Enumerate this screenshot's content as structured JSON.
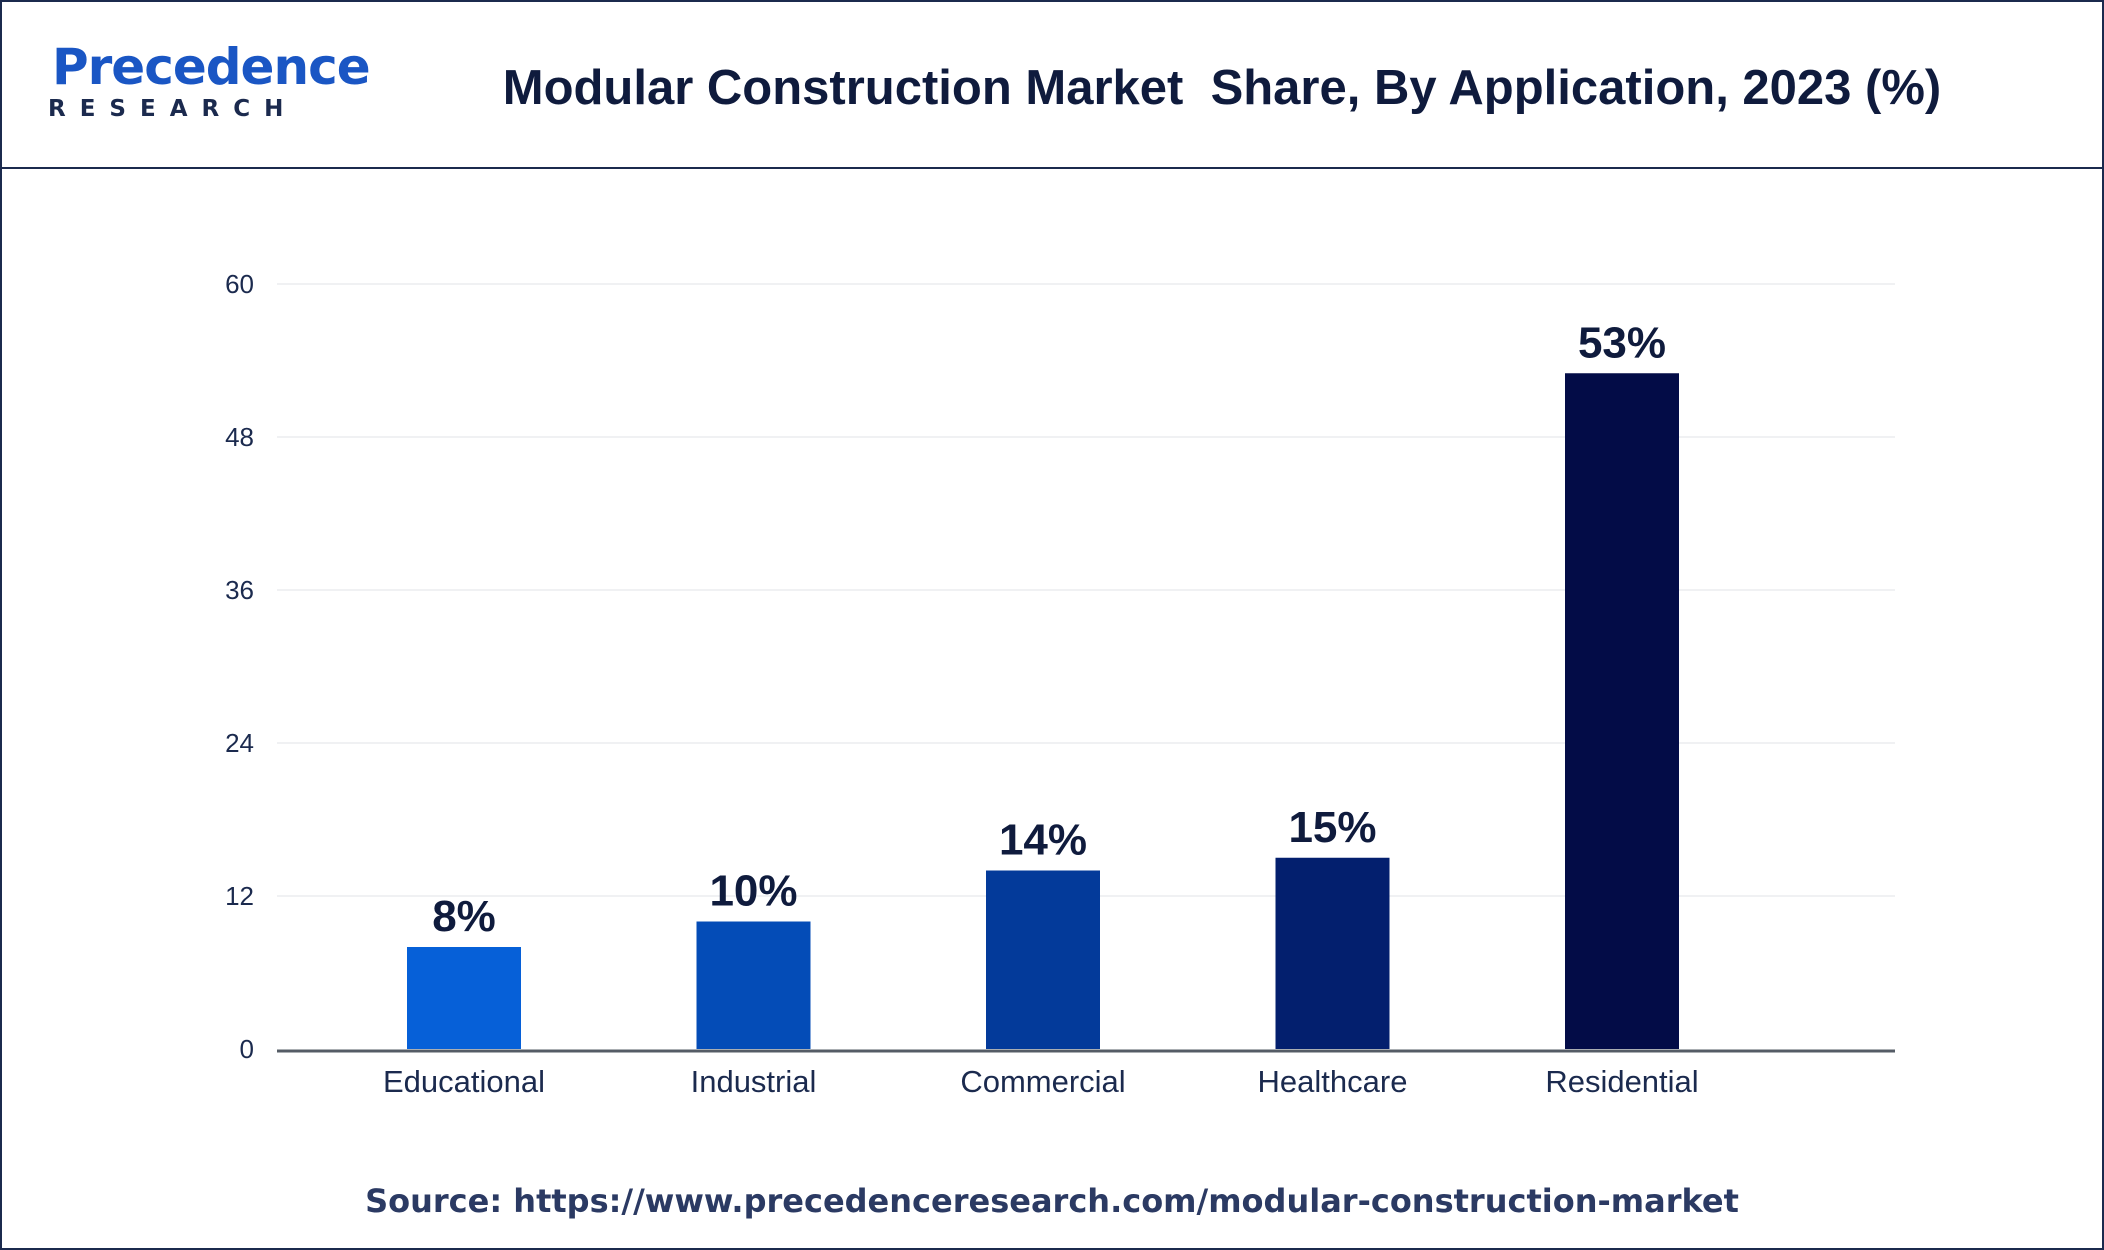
{
  "header": {
    "logo_word": "Precedence",
    "logo_sub": "RESEARCH",
    "title": "Modular Construction Market  Share, By Application, 2023 (%)"
  },
  "footer": {
    "source": "Source: https://www.precedenceresearch.com/modular-construction-market"
  },
  "chart_data": {
    "type": "bar",
    "categories": [
      "Educational",
      "Industrial",
      "Commercial",
      "Healthcare",
      "Residential"
    ],
    "values": [
      8,
      10,
      14,
      15,
      53
    ],
    "data_labels": [
      "8%",
      "10%",
      "14%",
      "15%",
      "53%"
    ],
    "bar_colors": [
      "#0660d8",
      "#044cb7",
      "#033a9a",
      "#031f6e",
      "#030c47"
    ],
    "ylim": [
      0,
      60
    ],
    "yticks": [
      0,
      12,
      24,
      36,
      48,
      60
    ],
    "grid": true,
    "legend": "none"
  }
}
